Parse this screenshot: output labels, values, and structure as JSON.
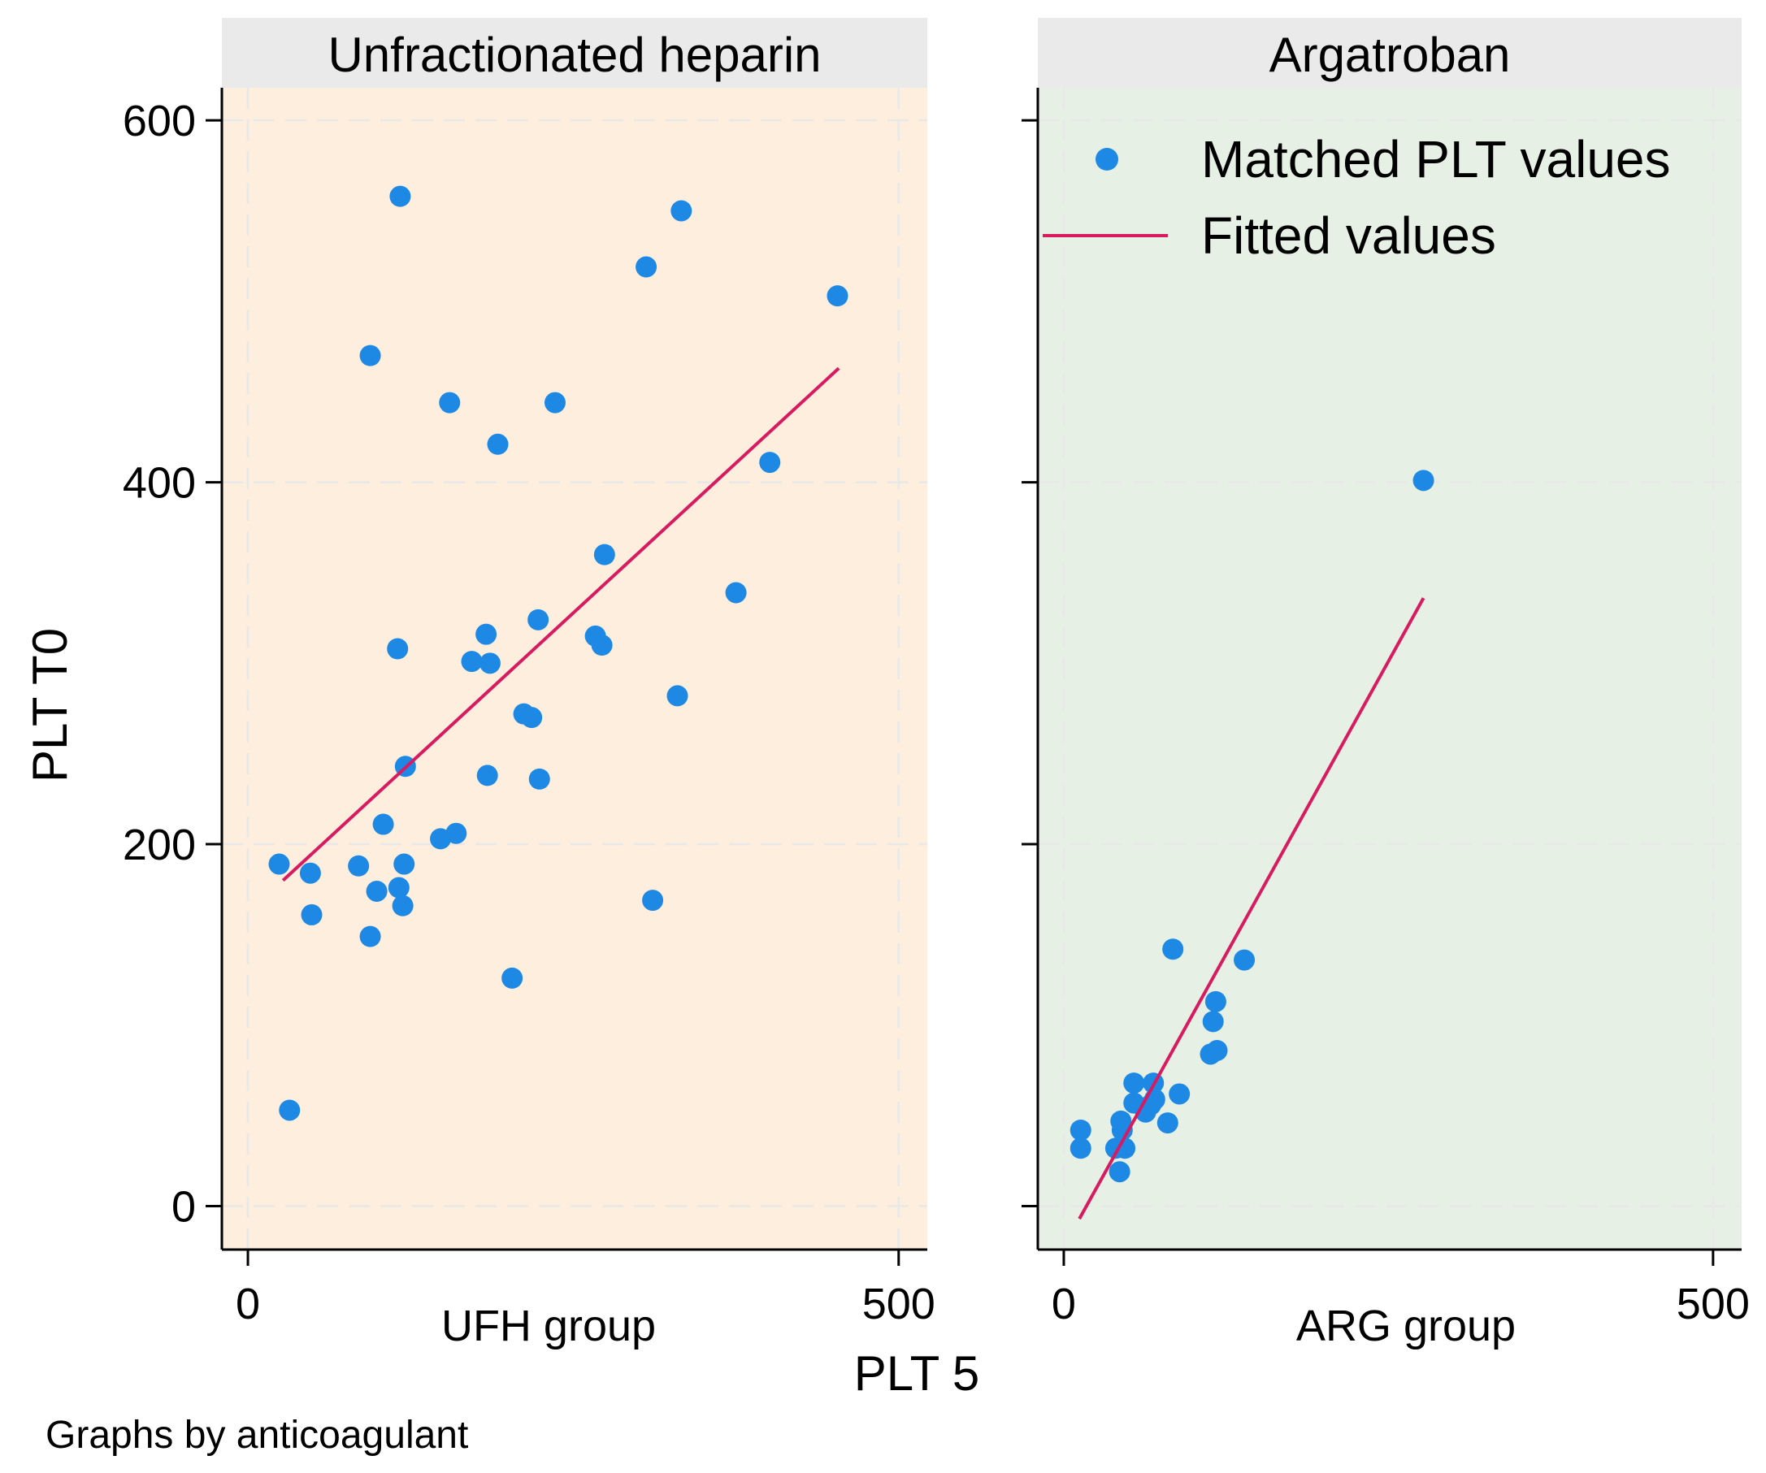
{
  "chart_data": {
    "type": "scatter",
    "caption": "Graphs by anticoagulant",
    "xlabel": "PLT 5",
    "ylabel": "PLT T0",
    "xlim": [
      -20,
      522
    ],
    "ylim": [
      -24,
      618
    ],
    "x_ticks": [
      0,
      500
    ],
    "y_ticks": [
      0,
      200,
      400,
      600
    ],
    "grid": true,
    "colors": {
      "points": "#1e88e5",
      "fit": "#d81b60",
      "strip": "#eaeaea",
      "ufh_background": "#fdeede",
      "arg_background": "#e6f0e4"
    },
    "legend": {
      "position": "top-right",
      "entries": [
        "Matched PLT values",
        "Fitted values"
      ]
    },
    "panels": [
      {
        "title": "Unfractionated heparin",
        "group_label": "UFH group",
        "points": [
          [
            24,
            189
          ],
          [
            32,
            53
          ],
          [
            48,
            184
          ],
          [
            49,
            161
          ],
          [
            85,
            188
          ],
          [
            94,
            149
          ],
          [
            99,
            174
          ],
          [
            104,
            211
          ],
          [
            115,
            308
          ],
          [
            116,
            176
          ],
          [
            117,
            558
          ],
          [
            119,
            166
          ],
          [
            120,
            189
          ],
          [
            121,
            243
          ],
          [
            94,
            470
          ],
          [
            148,
            203
          ],
          [
            155,
            444
          ],
          [
            160,
            206
          ],
          [
            172,
            301
          ],
          [
            183,
            316
          ],
          [
            184,
            238
          ],
          [
            186,
            300
          ],
          [
            192,
            421
          ],
          [
            203,
            126
          ],
          [
            212,
            272
          ],
          [
            218,
            270
          ],
          [
            223,
            324
          ],
          [
            224,
            236
          ],
          [
            236,
            444
          ],
          [
            267,
            315
          ],
          [
            272,
            310
          ],
          [
            274,
            360
          ],
          [
            306,
            519
          ],
          [
            311,
            169
          ],
          [
            330,
            282
          ],
          [
            333,
            550
          ],
          [
            375,
            339
          ],
          [
            401,
            411
          ],
          [
            453,
            503
          ]
        ],
        "fit": [
          [
            27,
            180
          ],
          [
            454,
            463
          ]
        ]
      },
      {
        "title": "Argatroban",
        "group_label": "ARG group",
        "points": [
          [
            13,
            32
          ],
          [
            13,
            42
          ],
          [
            40,
            32
          ],
          [
            43,
            19
          ],
          [
            44,
            47
          ],
          [
            45,
            42
          ],
          [
            47,
            32
          ],
          [
            54,
            57
          ],
          [
            54,
            68
          ],
          [
            63,
            52
          ],
          [
            67,
            56
          ],
          [
            69,
            68
          ],
          [
            70,
            59
          ],
          [
            80,
            46
          ],
          [
            84,
            142
          ],
          [
            89,
            62
          ],
          [
            113,
            84
          ],
          [
            115,
            102
          ],
          [
            117,
            113
          ],
          [
            118,
            86
          ],
          [
            139,
            136
          ],
          [
            277,
            401
          ]
        ],
        "fit": [
          [
            12,
            -7
          ],
          [
            277,
            336
          ]
        ]
      }
    ]
  }
}
